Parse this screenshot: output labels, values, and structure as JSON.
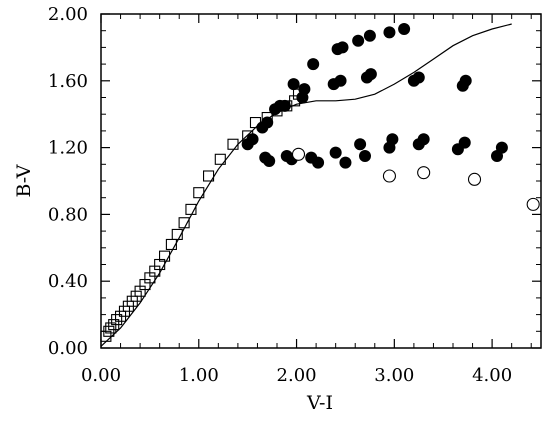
{
  "chart_data": {
    "type": "scatter",
    "title": "",
    "xlabel": "V-I",
    "ylabel": "B-V",
    "xlim": [
      0.0,
      4.5
    ],
    "ylim": [
      0.0,
      2.0
    ],
    "x_ticks": [
      "0.00",
      "1.00",
      "2.00",
      "3.00",
      "4.00"
    ],
    "y_ticks": [
      "0.00",
      "0.40",
      "0.80",
      "1.20",
      "1.60",
      "2.00"
    ],
    "grid": false,
    "legend": "none",
    "series": [
      {
        "marker": "open-square",
        "points": [
          [
            0.05,
            0.07
          ],
          [
            0.08,
            0.1
          ],
          [
            0.1,
            0.12
          ],
          [
            0.13,
            0.14
          ],
          [
            0.16,
            0.17
          ],
          [
            0.2,
            0.19
          ],
          [
            0.24,
            0.22
          ],
          [
            0.28,
            0.25
          ],
          [
            0.32,
            0.28
          ],
          [
            0.36,
            0.31
          ],
          [
            0.4,
            0.34
          ],
          [
            0.45,
            0.38
          ],
          [
            0.5,
            0.42
          ],
          [
            0.55,
            0.46
          ],
          [
            0.6,
            0.5
          ],
          [
            0.65,
            0.55
          ],
          [
            0.72,
            0.62
          ],
          [
            0.78,
            0.68
          ],
          [
            0.85,
            0.75
          ],
          [
            0.92,
            0.83
          ],
          [
            1.0,
            0.93
          ],
          [
            1.1,
            1.03
          ],
          [
            1.22,
            1.13
          ],
          [
            1.35,
            1.22
          ],
          [
            1.5,
            1.27
          ],
          [
            1.58,
            1.35
          ],
          [
            1.7,
            1.38
          ],
          [
            1.8,
            1.42
          ],
          [
            1.9,
            1.45
          ],
          [
            1.98,
            1.48
          ],
          [
            2.02,
            1.52
          ]
        ]
      },
      {
        "marker": "filled-circle",
        "points": [
          [
            1.5,
            1.22
          ],
          [
            1.55,
            1.25
          ],
          [
            1.65,
            1.32
          ],
          [
            1.7,
            1.35
          ],
          [
            1.78,
            1.43
          ],
          [
            1.83,
            1.45
          ],
          [
            1.88,
            1.45
          ],
          [
            1.97,
            1.58
          ],
          [
            2.06,
            1.5
          ],
          [
            2.08,
            1.55
          ],
          [
            2.17,
            1.7
          ],
          [
            2.42,
            1.79
          ],
          [
            2.47,
            1.8
          ],
          [
            2.38,
            1.58
          ],
          [
            2.45,
            1.6
          ],
          [
            2.63,
            1.84
          ],
          [
            2.75,
            1.87
          ],
          [
            2.95,
            1.89
          ],
          [
            3.1,
            1.91
          ],
          [
            2.72,
            1.62
          ],
          [
            2.76,
            1.64
          ],
          [
            3.2,
            1.6
          ],
          [
            3.25,
            1.62
          ],
          [
            3.7,
            1.57
          ],
          [
            3.73,
            1.6
          ],
          [
            1.68,
            1.14
          ],
          [
            1.72,
            1.12
          ],
          [
            1.9,
            1.15
          ],
          [
            1.95,
            1.13
          ],
          [
            2.15,
            1.14
          ],
          [
            2.22,
            1.11
          ],
          [
            2.4,
            1.17
          ],
          [
            2.5,
            1.11
          ],
          [
            2.65,
            1.22
          ],
          [
            2.7,
            1.15
          ],
          [
            2.95,
            1.2
          ],
          [
            2.98,
            1.25
          ],
          [
            3.25,
            1.22
          ],
          [
            3.3,
            1.25
          ],
          [
            3.65,
            1.19
          ],
          [
            3.72,
            1.23
          ],
          [
            4.05,
            1.15
          ],
          [
            4.1,
            1.2
          ]
        ]
      },
      {
        "marker": "open-circle",
        "points": [
          [
            2.02,
            1.16
          ],
          [
            2.95,
            1.03
          ],
          [
            3.3,
            1.05
          ],
          [
            3.82,
            1.01
          ],
          [
            4.42,
            0.86
          ]
        ]
      },
      {
        "marker": "line",
        "points": [
          [
            0.0,
            0.01
          ],
          [
            0.2,
            0.12
          ],
          [
            0.4,
            0.27
          ],
          [
            0.6,
            0.45
          ],
          [
            0.8,
            0.66
          ],
          [
            1.0,
            0.88
          ],
          [
            1.2,
            1.07
          ],
          [
            1.4,
            1.22
          ],
          [
            1.6,
            1.33
          ],
          [
            1.8,
            1.41
          ],
          [
            2.0,
            1.46
          ],
          [
            2.2,
            1.48
          ],
          [
            2.4,
            1.48
          ],
          [
            2.6,
            1.49
          ],
          [
            2.8,
            1.52
          ],
          [
            3.0,
            1.58
          ],
          [
            3.2,
            1.65
          ],
          [
            3.4,
            1.73
          ],
          [
            3.6,
            1.81
          ],
          [
            3.8,
            1.87
          ],
          [
            4.0,
            1.91
          ],
          [
            4.2,
            1.94
          ]
        ]
      }
    ]
  }
}
